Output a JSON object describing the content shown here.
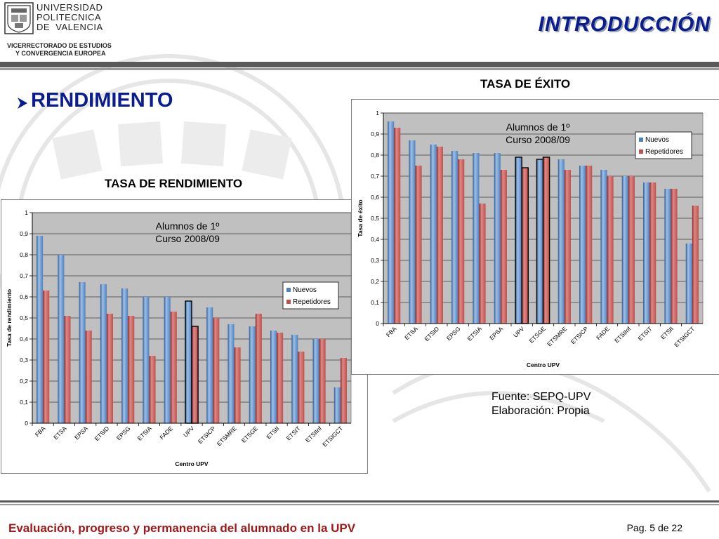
{
  "header": {
    "university_lines": [
      "UNIVERSIDAD",
      "POLITECNICA",
      "DE  VALENCIA"
    ],
    "vice_lines": [
      "VICERRECTORADO DE ESTUDIOS",
      "Y CONVERGENCIA EUROPEA"
    ],
    "title": "INTRODUCCIÓN"
  },
  "main": {
    "heading": "RENDIMIENTO",
    "bullet_icon": "arrow-bullet-icon"
  },
  "source": {
    "line1": "Fuente: SEPQ-UPV",
    "line2": "Elaboración: Propia"
  },
  "footer": {
    "title": "Evaluación, progreso y permanencia del alumnado en la UPV",
    "page": "Pag. 5 de 22"
  },
  "colors": {
    "title_blue": "#0a1d8f",
    "footer_red": "#a01818",
    "nuevos": "#4f81bd",
    "repetidores": "#c0504d",
    "plot_bg": "#c0c0c0"
  },
  "chart_data": [
    {
      "type": "bar",
      "title": "TASA DE RENDIMIENTO",
      "annotation": [
        "Alumnos de 1º",
        "Curso 2008/09"
      ],
      "xlabel": "Centro UPV",
      "ylabel": "Tasa de rendimiento",
      "ylim": [
        0,
        1
      ],
      "yticks": [
        "0",
        "0,1",
        "0,2",
        "0,3",
        "0,4",
        "0,5",
        "0,6",
        "0,7",
        "0,8",
        "0,9",
        "1"
      ],
      "categories": [
        "FBA",
        "ETSA",
        "EPSA",
        "ETSID",
        "EPSG",
        "ETSIA",
        "FADE",
        "UPV",
        "ETSICP",
        "ETSMRE",
        "ETSGE",
        "ETSII",
        "ETSIT",
        "ETSIInf",
        "ETSIGCT"
      ],
      "highlight_category": "UPV",
      "legend_position": "right",
      "series": [
        {
          "name": "Nuevos",
          "values": [
            0.89,
            0.8,
            0.67,
            0.66,
            0.64,
            0.6,
            0.6,
            0.58,
            0.55,
            0.47,
            0.46,
            0.44,
            0.42,
            0.4,
            0.17
          ]
        },
        {
          "name": "Repetidores",
          "values": [
            0.63,
            0.51,
            0.44,
            0.52,
            0.51,
            0.32,
            0.53,
            0.46,
            0.5,
            0.36,
            0.52,
            0.43,
            0.34,
            0.4,
            0.31
          ]
        }
      ]
    },
    {
      "type": "bar",
      "title": "TASA DE ÉXITO",
      "annotation": [
        "Alumnos de 1º",
        "Curso 2008/09"
      ],
      "xlabel": "Centro UPV",
      "ylabel": "Tasa de éxito",
      "ylim": [
        0,
        1
      ],
      "yticks": [
        "0",
        "0,1",
        "0,2",
        "0,3",
        "0,4",
        "0,5",
        "0,6",
        "0,7",
        "0,8",
        "0,9",
        "1"
      ],
      "categories": [
        "FBA",
        "ETSA",
        "ETSID",
        "EPSG",
        "ETSIA",
        "EPSA",
        "UPV",
        "ETSGE",
        "ETSMRE",
        "ETSICP",
        "FADE",
        "ETSIInf",
        "ETSIT",
        "ETSII",
        "ETSIGCT"
      ],
      "highlight_category": "UPV",
      "highlight_category_2": "ETSGE",
      "legend_position": "top-right",
      "series": [
        {
          "name": "Nuevos",
          "values": [
            0.96,
            0.87,
            0.85,
            0.82,
            0.81,
            0.81,
            0.79,
            0.78,
            0.78,
            0.75,
            0.73,
            0.7,
            0.67,
            0.64,
            0.38
          ]
        },
        {
          "name": "Repetidores",
          "values": [
            0.93,
            0.75,
            0.84,
            0.78,
            0.57,
            0.73,
            0.74,
            0.79,
            0.73,
            0.75,
            0.7,
            0.7,
            0.67,
            0.64,
            0.56
          ]
        }
      ]
    }
  ]
}
